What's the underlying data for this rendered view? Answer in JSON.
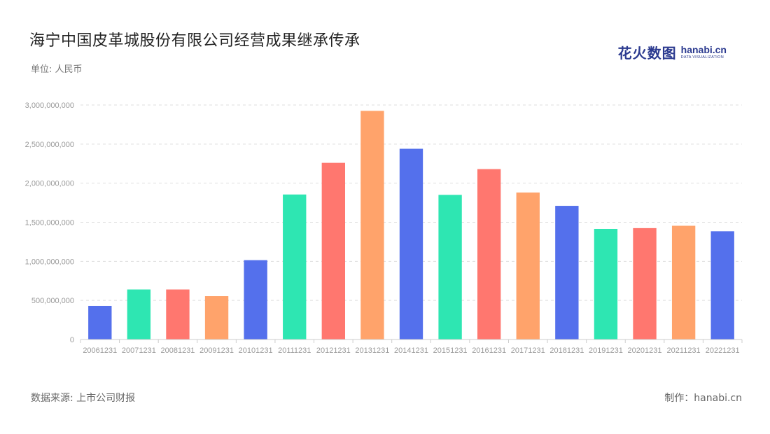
{
  "header": {
    "title": "海宁中国皮革城股份有限公司经营成果继承传承",
    "unit": "单位: 人民币"
  },
  "logo": {
    "cn": "花火数图",
    "en": "hanabi.cn",
    "sub": "DATA VISUALIZATION"
  },
  "footer": {
    "source": "数据来源: 上市公司财报",
    "maker": "制作：hanabi.cn"
  },
  "colors": {
    "palette": [
      "#5470ec",
      "#2ee6b2",
      "#ff776f",
      "#ffa36b"
    ],
    "grid": "#dddddd",
    "tick_text": "#999999",
    "axis": "#cccccc"
  },
  "chart_data": {
    "type": "bar",
    "title": "海宁中国皮革城股份有限公司经营成果继承传承",
    "xlabel": "",
    "ylabel": "",
    "categories": [
      "20061231",
      "20071231",
      "20081231",
      "20091231",
      "20101231",
      "20111231",
      "20121231",
      "20131231",
      "20141231",
      "20151231",
      "20161231",
      "20171231",
      "20181231",
      "20191231",
      "20201231",
      "20211231",
      "20221231"
    ],
    "values": [
      430000000,
      640000000,
      640000000,
      555000000,
      1015000000,
      1855000000,
      2260000000,
      2925000000,
      2440000000,
      1850000000,
      2180000000,
      1880000000,
      1710000000,
      1415000000,
      1425000000,
      1455000000,
      1385000000
    ],
    "ylim": [
      0,
      3000000000
    ],
    "yticks": [
      0,
      500000000,
      1000000000,
      1500000000,
      2000000000,
      2500000000,
      3000000000
    ],
    "ytick_labels": [
      "0",
      "500,000,000",
      "1,000,000,000",
      "1,500,000,000",
      "2,000,000,000",
      "2,500,000,000",
      "3,000,000,000"
    ],
    "grid": true,
    "legend": "none"
  }
}
